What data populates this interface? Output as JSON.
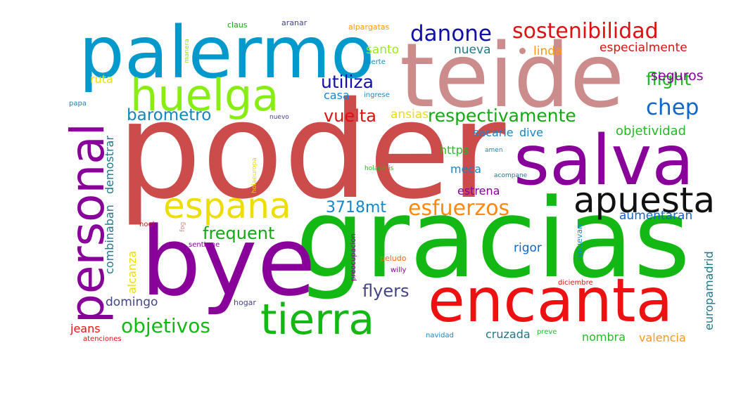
{
  "words": {
    "poder": {
      "text": "poder",
      "color": "#cc4c4c"
    },
    "gracias": {
      "text": "gracias",
      "color": "#14b814"
    },
    "teide": {
      "text": "teide",
      "color": "#cc8c8c"
    },
    "palermo": {
      "text": "palermo",
      "color": "#0099cc"
    },
    "bye": {
      "text": "bye",
      "color": "#880099"
    },
    "salva": {
      "text": "salva",
      "color": "#880099"
    },
    "encanta": {
      "text": "encanta",
      "color": "#ee1111"
    },
    "tierra": {
      "text": "tierra",
      "color": "#14b814"
    },
    "personal": {
      "text": "personal",
      "color": "#880099"
    },
    "huelga": {
      "text": "huelga",
      "color": "#88ee11"
    },
    "apuesta": {
      "text": "apuesta",
      "color": "#111111"
    },
    "espana": {
      "text": "espana",
      "color": "#eedd00"
    },
    "sostenibilidad": {
      "text": "sostenibilidad",
      "color": "#dd1111"
    },
    "danone": {
      "text": "danone",
      "color": "#1111aa"
    },
    "esfuerzos": {
      "text": "esfuerzos",
      "color": "#ff8811"
    },
    "objetivos": {
      "text": "objetivos",
      "color": "#14b814"
    },
    "chep": {
      "text": "chep",
      "color": "#1166cc"
    },
    "respectivamente": {
      "text": "respectivamente",
      "color": "#14a814"
    },
    "flight": {
      "text": "flight",
      "color": "#22bb22"
    },
    "utiliza": {
      "text": "utiliza",
      "color": "#1111aa"
    },
    "vuelta": {
      "text": "vuelta",
      "color": "#dd1111"
    },
    "barometro": {
      "text": "barometro",
      "color": "#1188bb"
    },
    "frequent": {
      "text": "frequent",
      "color": "#14a814"
    },
    "flyers": {
      "text": "flyers",
      "color": "#444488"
    },
    "3718mt": {
      "text": "3718mt",
      "color": "#1188cc"
    },
    "especialmente": {
      "text": "especialmente",
      "color": "#dd1111"
    },
    "seguros": {
      "text": "seguros",
      "color": "#880099"
    },
    "objetividad": {
      "text": "objetividad",
      "color": "#22bb22"
    },
    "linda": {
      "text": "linda",
      "color": "#ff9911"
    },
    "nueva": {
      "text": "nueva",
      "color": "#227788"
    },
    "santo": {
      "text": "santo",
      "color": "#99ee11"
    },
    "casa": {
      "text": "casa",
      "color": "#1188cc"
    },
    "ansias": {
      "text": "ansias",
      "color": "#eedd00"
    },
    "ruta": {
      "text": "ruta",
      "color": "#eedd00"
    },
    "sacarle": {
      "text": "sacarle",
      "color": "#1188cc"
    },
    "dive": {
      "text": "dive",
      "color": "#1188cc"
    },
    "https": {
      "text": "https",
      "color": "#22bb22"
    },
    "meca": {
      "text": "meca",
      "color": "#1188cc"
    },
    "estrena": {
      "text": "estrena",
      "color": "#880099"
    },
    "aumentaran": {
      "text": "aumentaran",
      "color": "#1166cc"
    },
    "rigor": {
      "text": "rigor",
      "color": "#1166cc"
    },
    "domingo": {
      "text": "domingo",
      "color": "#444488"
    },
    "jeans": {
      "text": "jeans",
      "color": "#ee1111"
    },
    "cruzada": {
      "text": "cruzada",
      "color": "#227788"
    },
    "nombra": {
      "text": "nombra",
      "color": "#22bb22"
    },
    "valencia": {
      "text": "valencia",
      "color": "#ff9911"
    },
    "demostrar": {
      "text": "demostrar",
      "color": "#227788"
    },
    "combinaban": {
      "text": "combinaban",
      "color": "#227788"
    },
    "alcanza": {
      "text": "alcanza",
      "color": "#eedd00"
    },
    "europamadrid": {
      "text": "europamadrid",
      "color": "#227788"
    },
    "preocupacion": {
      "text": "preocupacion",
      "color": "#880099"
    },
    "renuevan": {
      "text": "renuevan",
      "color": "#1188cc"
    },
    "holaeuropa": {
      "text": "holaeuropa",
      "color": "#eedd00"
    },
    "fog": {
      "text": "fog",
      "color": "#cc8c8c"
    },
    "manera": {
      "text": "manera",
      "color": "#88ee11"
    },
    "claus": {
      "text": "claus",
      "color": "#14a814"
    },
    "aranar": {
      "text": "aranar",
      "color": "#444488"
    },
    "alpargatas": {
      "text": "alpargatas",
      "color": "#ff9911"
    },
    "suerte": {
      "text": "suerte",
      "color": "#1188cc"
    },
    "ingrese": {
      "text": "ingrese",
      "color": "#1188cc"
    },
    "papa": {
      "text": "papa",
      "color": "#1188cc"
    },
    "nuevo": {
      "text": "nuevo",
      "color": "#444488"
    },
    "amen": {
      "text": "amen",
      "color": "#1188cc"
    },
    "holaparis": {
      "text": "holaparis",
      "color": "#22bb22"
    },
    "acompane": {
      "text": "acompane",
      "color": "#227788"
    },
    "noel": {
      "text": "noel",
      "color": "#dd1111"
    },
    "sentirme": {
      "text": "sentirme",
      "color": "#880099"
    },
    "peludo": {
      "text": "peludo",
      "color": "#ff6611"
    },
    "willy": {
      "text": "willy",
      "color": "#880099"
    },
    "hogar": {
      "text": "hogar",
      "color": "#444488"
    },
    "diciembre": {
      "text": "diciembre",
      "color": "#dd1111"
    },
    "atenciones": {
      "text": "atenciones",
      "color": "#dd1111"
    },
    "navidad": {
      "text": "navidad",
      "color": "#1188cc"
    },
    "preve": {
      "text": "preve",
      "color": "#22bb22"
    }
  }
}
